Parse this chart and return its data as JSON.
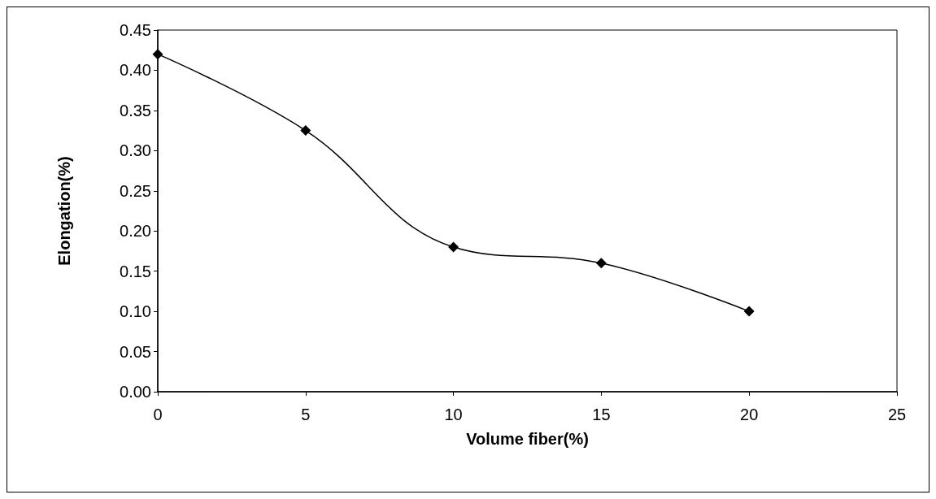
{
  "chart_data": {
    "type": "line",
    "xlabel": "Volume fiber(%)",
    "ylabel": "Elongation(%)",
    "x": [
      0,
      5,
      10,
      15,
      20
    ],
    "series": [
      {
        "color": "#000000",
        "values": [
          0.42,
          0.325,
          0.18,
          0.16,
          0.1
        ]
      }
    ],
    "xlim": [
      0,
      25
    ],
    "xticks": [
      0,
      5,
      10,
      15,
      20,
      25
    ],
    "ylim": [
      0,
      0.45
    ],
    "yticks": [
      {
        "value": 0,
        "label": "0.00"
      },
      {
        "value": 0.05,
        "label": "0.05"
      },
      {
        "value": 0.1,
        "label": "0.10"
      },
      {
        "value": 0.15,
        "label": "0.15"
      },
      {
        "value": 0.2,
        "label": "0.20"
      },
      {
        "value": 0.25,
        "label": "0.25"
      },
      {
        "value": 0.3,
        "label": "0.30"
      },
      {
        "value": 0.35,
        "label": "0.35"
      },
      {
        "value": 0.4,
        "label": "0.40"
      },
      {
        "value": 0.45,
        "label": "0.45"
      }
    ],
    "marker": "diamond",
    "line_style": "solid"
  }
}
